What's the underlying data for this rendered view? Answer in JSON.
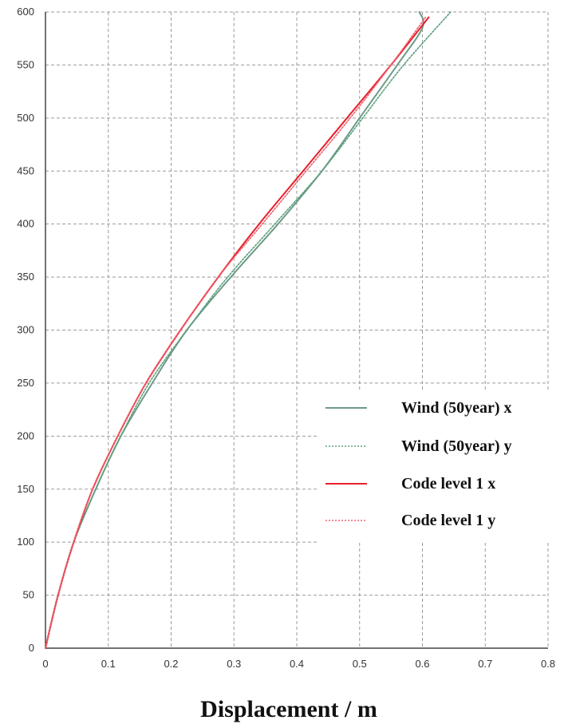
{
  "chart_data": {
    "type": "line",
    "title": "",
    "xlabel": "Displacement / m",
    "ylabel": "",
    "xlim": [
      0,
      0.8
    ],
    "ylim": [
      0,
      600
    ],
    "x_ticks": [
      "0",
      "0.1",
      "0.2",
      "0.3",
      "0.4",
      "0.5",
      "0.6",
      "0.7",
      "0.8"
    ],
    "y_ticks": [
      "0",
      "50",
      "100",
      "150",
      "200",
      "250",
      "300",
      "350",
      "400",
      "450",
      "500",
      "550",
      "600"
    ],
    "grid": true,
    "legend_position": "right",
    "series": [
      {
        "name": "Wind (50year) x",
        "color": "#6f9a88",
        "style": "solid",
        "points": [
          [
            0,
            0
          ],
          [
            0.02,
            50
          ],
          [
            0.045,
            100
          ],
          [
            0.08,
            150
          ],
          [
            0.12,
            200
          ],
          [
            0.17,
            250
          ],
          [
            0.225,
            300
          ],
          [
            0.295,
            350
          ],
          [
            0.37,
            400
          ],
          [
            0.44,
            450
          ],
          [
            0.5,
            500
          ],
          [
            0.56,
            550
          ],
          [
            0.6,
            585
          ],
          [
            0.595,
            600
          ]
        ]
      },
      {
        "name": "Wind (50year) y",
        "color": "#5aa07c",
        "style": "dotted",
        "points": [
          [
            0,
            0
          ],
          [
            0.02,
            50
          ],
          [
            0.045,
            100
          ],
          [
            0.08,
            150
          ],
          [
            0.12,
            200
          ],
          [
            0.165,
            250
          ],
          [
            0.225,
            300
          ],
          [
            0.29,
            350
          ],
          [
            0.365,
            400
          ],
          [
            0.44,
            450
          ],
          [
            0.505,
            500
          ],
          [
            0.57,
            550
          ],
          [
            0.645,
            600
          ]
        ]
      },
      {
        "name": "Code level 1 x",
        "color": "#e8202a",
        "style": "solid",
        "points": [
          [
            0,
            0
          ],
          [
            0.02,
            50
          ],
          [
            0.045,
            100
          ],
          [
            0.075,
            150
          ],
          [
            0.115,
            200
          ],
          [
            0.16,
            250
          ],
          [
            0.215,
            300
          ],
          [
            0.275,
            350
          ],
          [
            0.34,
            400
          ],
          [
            0.41,
            450
          ],
          [
            0.48,
            500
          ],
          [
            0.55,
            550
          ],
          [
            0.61,
            595
          ]
        ]
      },
      {
        "name": "Code level 1 y",
        "color": "#f06070",
        "style": "dotted",
        "points": [
          [
            0,
            0
          ],
          [
            0.02,
            50
          ],
          [
            0.045,
            100
          ],
          [
            0.075,
            150
          ],
          [
            0.115,
            200
          ],
          [
            0.16,
            250
          ],
          [
            0.215,
            300
          ],
          [
            0.275,
            350
          ],
          [
            0.345,
            400
          ],
          [
            0.415,
            450
          ],
          [
            0.485,
            500
          ],
          [
            0.55,
            550
          ],
          [
            0.605,
            595
          ]
        ]
      }
    ]
  }
}
